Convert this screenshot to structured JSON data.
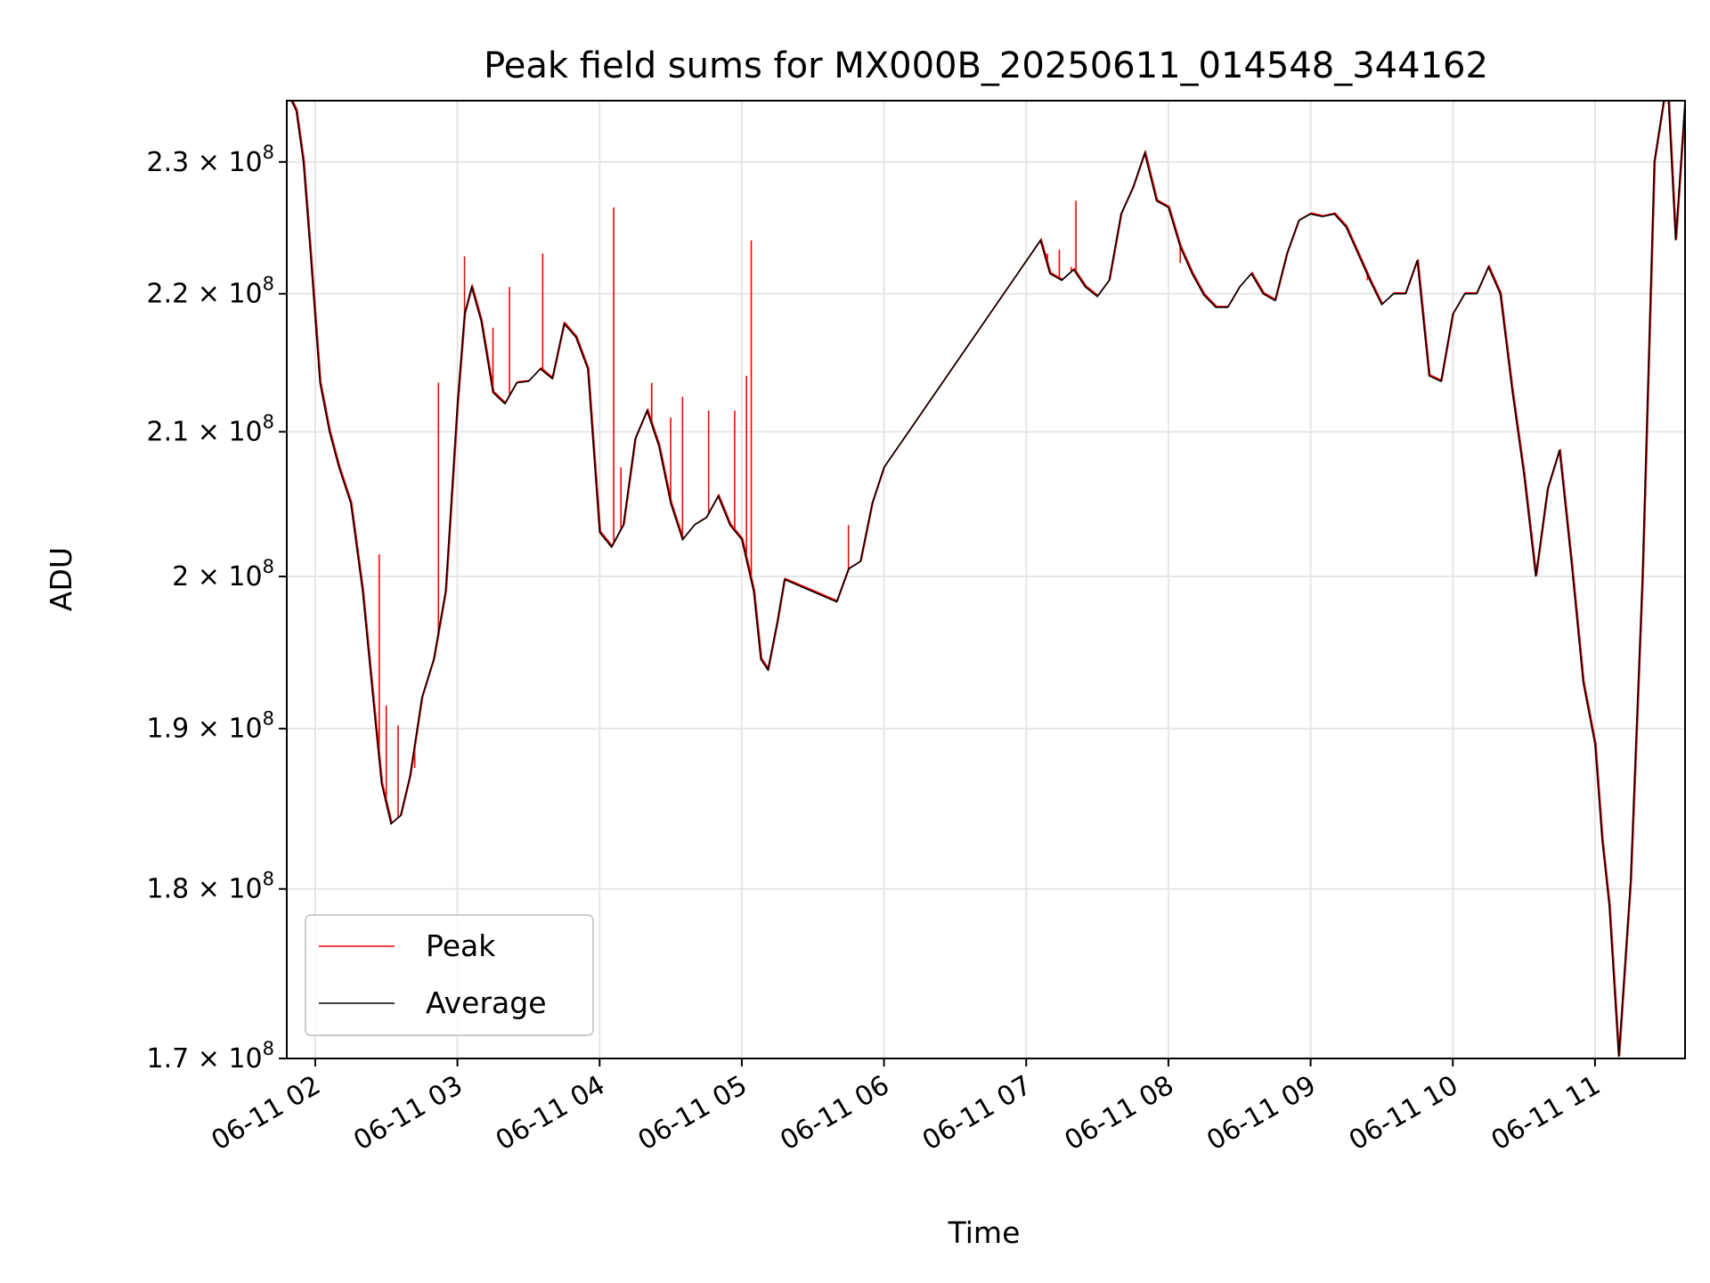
{
  "chart_data": {
    "type": "line",
    "title": "Peak field sums for MX000B_20250611_014548_344162",
    "xlabel": "Time",
    "ylabel": "ADU",
    "y_scale": "log",
    "ylim": [
      170000000,
      234800000
    ],
    "xlim": [
      "2025-06-11 01:48",
      "2025-06-11 11:38"
    ],
    "grid": true,
    "legend_position": "lower-left",
    "x_ticks": [
      "06-11 02",
      "06-11 03",
      "06-11 04",
      "06-11 05",
      "06-11 06",
      "06-11 07",
      "06-11 08",
      "06-11 09",
      "06-11 10",
      "06-11 11"
    ],
    "x_tick_times": [
      "2025-06-11 02:00",
      "2025-06-11 03:00",
      "2025-06-11 04:00",
      "2025-06-11 05:00",
      "2025-06-11 06:00",
      "2025-06-11 07:00",
      "2025-06-11 08:00",
      "2025-06-11 09:00",
      "2025-06-11 10:00",
      "2025-06-11 11:00"
    ],
    "y_ticks": [
      {
        "value": 170000000,
        "mantissa": "1.7",
        "exp": "8"
      },
      {
        "value": 180000000,
        "mantissa": "1.8",
        "exp": "8"
      },
      {
        "value": 190000000,
        "mantissa": "1.9",
        "exp": "8"
      },
      {
        "value": 200000000,
        "mantissa": "2",
        "exp": "8"
      },
      {
        "value": 210000000,
        "mantissa": "2.1",
        "exp": "8"
      },
      {
        "value": 220000000,
        "mantissa": "2.2",
        "exp": "8"
      },
      {
        "value": 230000000,
        "mantissa": "2.3",
        "exp": "8"
      }
    ],
    "times_sign": "×",
    "series": [
      {
        "name": "Average",
        "color": "#000000",
        "x": [
          "2025-06-11 01:48",
          "2025-06-11 01:50",
          "2025-06-11 01:52",
          "2025-06-11 01:55",
          "2025-06-11 01:58",
          "2025-06-11 02:02",
          "2025-06-11 02:06",
          "2025-06-11 02:10",
          "2025-06-11 02:15",
          "2025-06-11 02:20",
          "2025-06-11 02:25",
          "2025-06-11 02:28",
          "2025-06-11 02:32",
          "2025-06-11 02:36",
          "2025-06-11 02:40",
          "2025-06-11 02:45",
          "2025-06-11 02:50",
          "2025-06-11 02:55",
          "2025-06-11 03:00",
          "2025-06-11 03:03",
          "2025-06-11 03:06",
          "2025-06-11 03:10",
          "2025-06-11 03:15",
          "2025-06-11 03:20",
          "2025-06-11 03:25",
          "2025-06-11 03:30",
          "2025-06-11 03:35",
          "2025-06-11 03:40",
          "2025-06-11 03:45",
          "2025-06-11 03:50",
          "2025-06-11 03:55",
          "2025-06-11 04:00",
          "2025-06-11 04:05",
          "2025-06-11 04:10",
          "2025-06-11 04:15",
          "2025-06-11 04:20",
          "2025-06-11 04:25",
          "2025-06-11 04:30",
          "2025-06-11 04:35",
          "2025-06-11 04:40",
          "2025-06-11 04:45",
          "2025-06-11 04:50",
          "2025-06-11 04:55",
          "2025-06-11 05:00",
          "2025-06-11 05:05",
          "2025-06-11 05:08",
          "2025-06-11 05:11",
          "2025-06-11 05:15",
          "2025-06-11 05:18",
          "2025-06-11 05:40",
          "2025-06-11 05:45",
          "2025-06-11 05:50",
          "2025-06-11 05:55",
          "2025-06-11 06:00",
          "2025-06-11 07:06",
          "2025-06-11 07:10",
          "2025-06-11 07:15",
          "2025-06-11 07:20",
          "2025-06-11 07:25",
          "2025-06-11 07:30",
          "2025-06-11 07:35",
          "2025-06-11 07:40",
          "2025-06-11 07:45",
          "2025-06-11 07:50",
          "2025-06-11 07:55",
          "2025-06-11 08:00",
          "2025-06-11 08:05",
          "2025-06-11 08:10",
          "2025-06-11 08:15",
          "2025-06-11 08:20",
          "2025-06-11 08:25",
          "2025-06-11 08:30",
          "2025-06-11 08:35",
          "2025-06-11 08:40",
          "2025-06-11 08:45",
          "2025-06-11 08:50",
          "2025-06-11 08:55",
          "2025-06-11 09:00",
          "2025-06-11 09:05",
          "2025-06-11 09:10",
          "2025-06-11 09:15",
          "2025-06-11 09:20",
          "2025-06-11 09:25",
          "2025-06-11 09:30",
          "2025-06-11 09:35",
          "2025-06-11 09:40",
          "2025-06-11 09:45",
          "2025-06-11 09:50",
          "2025-06-11 09:55",
          "2025-06-11 10:00",
          "2025-06-11 10:05",
          "2025-06-11 10:10",
          "2025-06-11 10:15",
          "2025-06-11 10:20",
          "2025-06-11 10:25",
          "2025-06-11 10:30",
          "2025-06-11 10:35",
          "2025-06-11 10:40",
          "2025-06-11 10:45",
          "2025-06-11 10:50",
          "2025-06-11 10:55",
          "2025-06-11 11:00",
          "2025-06-11 11:03",
          "2025-06-11 11:06",
          "2025-06-11 11:10",
          "2025-06-11 11:15",
          "2025-06-11 11:20",
          "2025-06-11 11:25",
          "2025-06-11 11:29",
          "2025-06-11 11:31",
          "2025-06-11 11:34",
          "2025-06-11 11:38"
        ],
        "values": [
          234800000,
          234800000,
          234000000,
          230000000,
          223000000,
          213500000,
          210000000,
          207500000,
          205000000,
          199000000,
          191000000,
          186500000,
          184000000,
          184500000,
          187000000,
          192000000,
          194500000,
          199000000,
          212000000,
          218500000,
          220500000,
          218000000,
          212800000,
          212000000,
          213500000,
          213600000,
          214500000,
          213800000,
          217800000,
          216800000,
          214500000,
          203000000,
          202000000,
          203500000,
          209500000,
          211500000,
          209000000,
          205000000,
          202500000,
          203500000,
          204000000,
          205500000,
          203500000,
          202500000,
          199000000,
          194500000,
          193800000,
          197000000,
          199800000,
          198300000,
          200500000,
          201000000,
          205000000,
          207500000,
          224000000,
          221500000,
          221000000,
          221800000,
          220500000,
          219800000,
          221000000,
          226000000,
          228000000,
          230700000,
          227000000,
          226500000,
          223500000,
          221500000,
          219900000,
          219000000,
          219000000,
          220500000,
          221500000,
          220000000,
          219500000,
          223000000,
          225500000,
          226000000,
          225800000,
          226000000,
          225000000,
          223000000,
          221000000,
          219200000,
          220000000,
          220000000,
          222500000,
          214000000,
          213600000,
          218500000,
          220000000,
          220000000,
          222000000,
          220000000,
          213000000,
          207000000,
          200000000,
          206000000,
          208700000,
          201000000,
          193000000,
          189000000,
          183000000,
          179000000,
          170100000,
          180500000,
          200000000,
          230000000,
          234800000,
          234800000,
          224000000,
          234800000
        ]
      },
      {
        "name": "Peak",
        "color": "#ff0000",
        "x": [
          "2025-06-11 02:27",
          "2025-06-11 02:30",
          "2025-06-11 02:35",
          "2025-06-11 02:42",
          "2025-06-11 02:52",
          "2025-06-11 03:03",
          "2025-06-11 03:15",
          "2025-06-11 03:22",
          "2025-06-11 03:36",
          "2025-06-11 04:06",
          "2025-06-11 04:09",
          "2025-06-11 04:22",
          "2025-06-11 04:30",
          "2025-06-11 04:35",
          "2025-06-11 04:46",
          "2025-06-11 04:57",
          "2025-06-11 05:02",
          "2025-06-11 05:04",
          "2025-06-11 05:45",
          "2025-06-11 07:09",
          "2025-06-11 07:14",
          "2025-06-11 07:19",
          "2025-06-11 07:21",
          "2025-06-11 07:53",
          "2025-06-11 08:05",
          "2025-06-11 09:24"
        ],
        "values": [
          201500000,
          191500000,
          190200000,
          187500000,
          213500000,
          222800000,
          217500000,
          220500000,
          223000000,
          226500000,
          207500000,
          213500000,
          211000000,
          212500000,
          211500000,
          211500000,
          214000000,
          224000000,
          203500000,
          223000000,
          223300000,
          222000000,
          227000000,
          228500000,
          222300000,
          221000000
        ]
      }
    ]
  }
}
